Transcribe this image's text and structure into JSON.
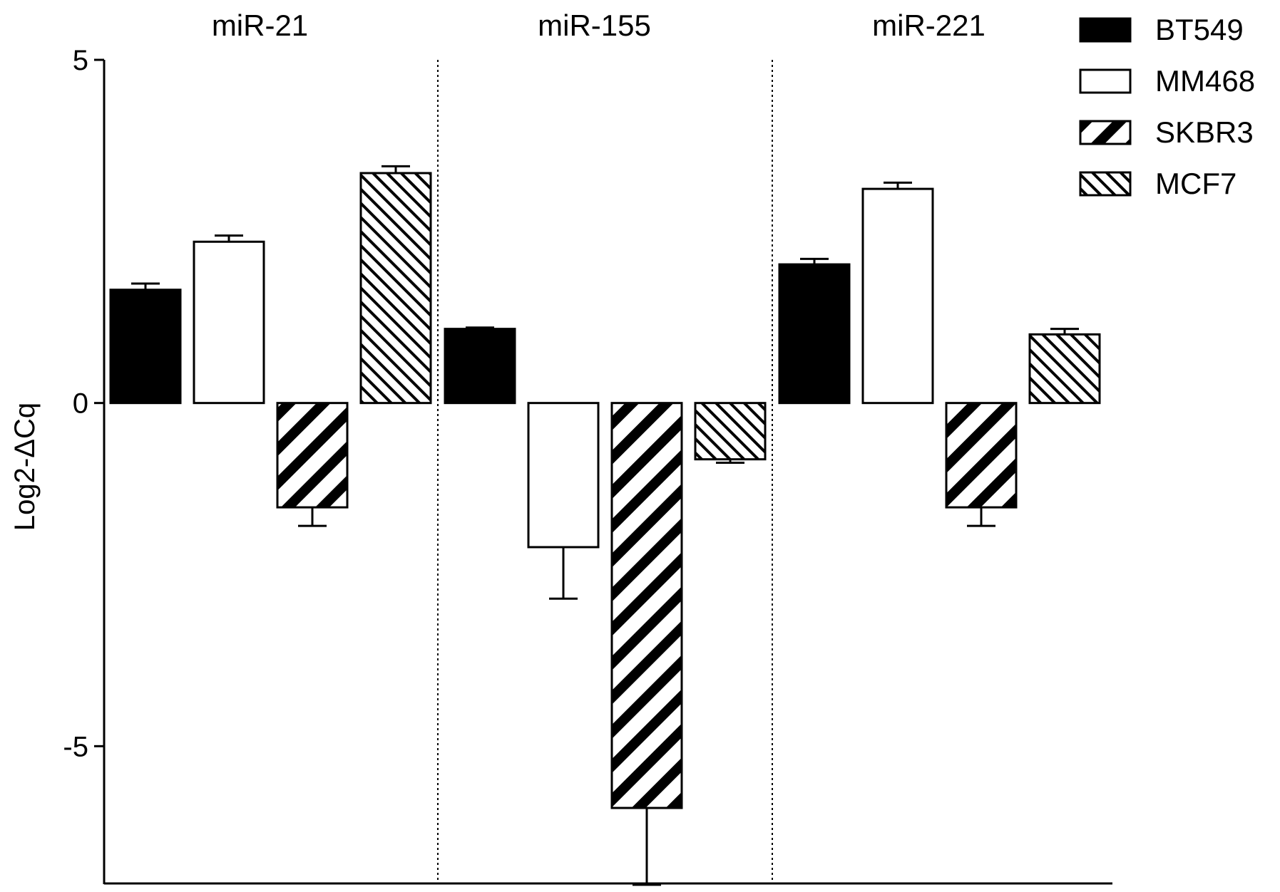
{
  "chart_data": {
    "type": "bar",
    "ylabel": "Log2-ΔCq",
    "ylim": [
      -7,
      5
    ],
    "yticks": [
      {
        "value": 5,
        "label": "5"
      },
      {
        "value": 0,
        "label": "0"
      },
      {
        "value": -5,
        "label": "-5"
      }
    ],
    "grid": false,
    "legend_position": "top-right",
    "groups": [
      "miR-21",
      "miR-155",
      "miR-221"
    ],
    "group_separators": "dotted",
    "series": [
      {
        "name": "BT549",
        "pattern": "solid-black",
        "values": [
          1.65,
          1.08,
          2.02
        ],
        "errors": [
          0.09,
          0.02,
          0.08
        ]
      },
      {
        "name": "MM468",
        "pattern": "white",
        "values": [
          2.35,
          -2.1,
          3.12
        ],
        "errors": [
          0.09,
          0.75,
          0.09
        ]
      },
      {
        "name": "SKBR3",
        "pattern": "hatch-black-thick",
        "values": [
          -1.52,
          -5.9,
          -1.52
        ],
        "errors": [
          0.27,
          1.12,
          0.27
        ]
      },
      {
        "name": "MCF7",
        "pattern": "hatch-fine",
        "values": [
          3.35,
          -0.82,
          1.0
        ],
        "errors": [
          0.1,
          0.05,
          0.08
        ]
      }
    ],
    "colors": {
      "bar_stroke": "#000000",
      "fill_solid": "#000000",
      "fill_white": "#ffffff"
    }
  }
}
